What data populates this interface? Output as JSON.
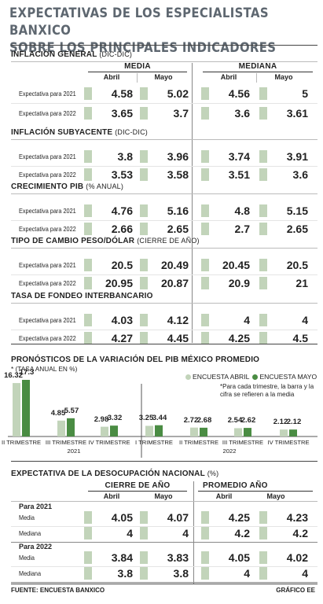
{
  "title_line1": "EXPECTATIVAS DE LOS ESPECIALISTAS BANXICO",
  "title_line2": "SOBRE LOS PRINCIPALES INDICADORES",
  "colors": {
    "light_green": "#c2d4ba",
    "dark_green": "#4a8c43",
    "title_gray": "#5e6770"
  },
  "table1": {
    "group_media": "MEDIA",
    "group_mediana": "MEDIANA",
    "col_abril": "Abril",
    "col_mayo": "Mayo",
    "row_2021": "Expectativa para 2021",
    "row_2022": "Expectativa para 2022",
    "sections": [
      {
        "name": "INFLACIÓN GENERAL",
        "sub": "(DIC-DIC)",
        "r2021": [
          "4.58",
          "5.02",
          "4.56",
          "5"
        ],
        "r2022": [
          "3.65",
          "3.7",
          "3.6",
          "3.61"
        ]
      },
      {
        "name": "INFLACIÓN SUBYACENTE",
        "sub": "(DIC-DIC)",
        "r2021": [
          "3.8",
          "3.96",
          "3.74",
          "3.91"
        ],
        "r2022": [
          "3.53",
          "3.58",
          "3.51",
          "3.6"
        ]
      },
      {
        "name": "CRECIMIENTO PIB",
        "sub": "(% ANUAL)",
        "r2021": [
          "4.76",
          "5.16",
          "4.8",
          "5.15"
        ],
        "r2022": [
          "2.66",
          "2.65",
          "2.7",
          "2.65"
        ]
      },
      {
        "name": "TIPO DE CAMBIO PESO/DÓLAR",
        "sub": "(CIERRE DE AÑO)",
        "r2021": [
          "20.5",
          "20.49",
          "20.45",
          "20.5"
        ],
        "r2022": [
          "20.95",
          "20.87",
          "20.9",
          "21"
        ]
      },
      {
        "name": "TASA DE FONDEO INTERBANCARIO",
        "sub": "",
        "r2021": [
          "4.03",
          "4.12",
          "4",
          "4"
        ],
        "r2022": [
          "4.27",
          "4.45",
          "4.25",
          "4.5"
        ]
      }
    ]
  },
  "chart_data": {
    "type": "bar",
    "title": "PRONÓSTICOS DE LA VARIACIÓN DEL PIB MÉXICO PROMEDIO",
    "subtitle": "* (TASA ANUAL EN %)",
    "note": "*Para cada trimestre, la barra y la cifra se refieren a la media",
    "categories": [
      "II TRIMESTRE",
      "III TRIMESTRE",
      "IV TRIMESTRE",
      "I TRIMESTRE",
      "II TRIMESTRE",
      "III TRIMESTRE",
      "IV TRIMESTRE"
    ],
    "year_labels": [
      "2021",
      "2022"
    ],
    "series": [
      {
        "name": "ENCUESTA ABRIL",
        "values": [
          16.32,
          4.85,
          2.98,
          3.25,
          2.72,
          2.54,
          2.12
        ],
        "labels": [
          "16.32",
          "4.85",
          "2.98",
          "3.25",
          "2.72",
          "2.54",
          "2.12"
        ]
      },
      {
        "name": "ENCUESTA MAYO",
        "values": [
          17.3,
          5.57,
          3.32,
          3.44,
          2.68,
          2.62,
          2.12
        ],
        "labels": [
          "17.3",
          "5.57",
          "3.32",
          "3.44",
          "2.68",
          "2.62",
          "2.12"
        ]
      }
    ],
    "ylim": [
      0,
      17.3
    ],
    "legend": "top-right"
  },
  "table2": {
    "name": "EXPECTATIVA DE LA DESOCUPACIÓN NACIONAL",
    "sub": "(%)",
    "group_cierre": "CIERRE DE AÑO",
    "group_promedio": "PROMEDIO AÑO",
    "col_abril": "Abril",
    "col_mayo": "Mayo",
    "para2021": "Para 2021",
    "para2022": "Para 2022",
    "media": "Media",
    "mediana": "Mediana",
    "r2021_media": [
      "4.05",
      "4.07",
      "4.25",
      "4.23"
    ],
    "r2021_mediana": [
      "4",
      "4",
      "4.2",
      "4.2"
    ],
    "r2022_media": [
      "3.84",
      "3.83",
      "4.05",
      "4.02"
    ],
    "r2022_mediana": [
      "3.8",
      "3.8",
      "4",
      "4"
    ]
  },
  "footer": {
    "source": "FUENTE: ENCUESTA BANXICO",
    "credit": "GRÁFICO EE"
  }
}
